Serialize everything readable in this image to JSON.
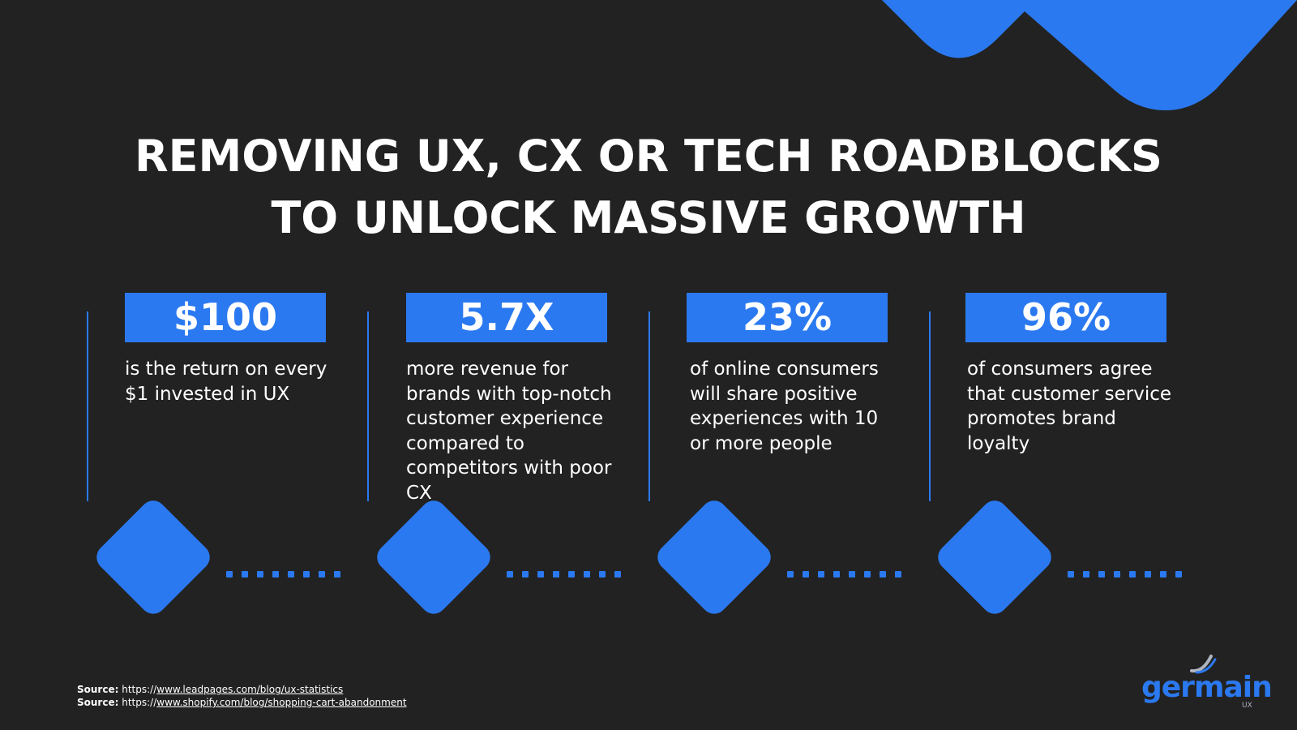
{
  "title": {
    "line1": "REMOVING UX, CX OR TECH ROADBLOCKS",
    "line2": "TO UNLOCK MASSIVE GROWTH"
  },
  "stats": [
    {
      "value": "$100",
      "description": "is the return on every $1 invested in UX"
    },
    {
      "value": "5.7X",
      "description": "more revenue for brands with top-notch customer experience compared to competitors with poor CX"
    },
    {
      "value": "23%",
      "description": "of online consumers will share positive experiences with 10 or more people"
    },
    {
      "value": "96%",
      "description": "of consumers agree that customer service promotes brand loyalty"
    }
  ],
  "sources": [
    {
      "label": "Source:",
      "prefix": "https://",
      "url": "www.leadpages.com/blog/ux-statistics"
    },
    {
      "label": "Source:",
      "prefix": "https://",
      "url": "www.shopify.com/blog/shopping-cart-abandonment"
    }
  ],
  "logo": {
    "word": "germain",
    "sub": "UX"
  },
  "colors": {
    "background": "#222222",
    "accent": "#2b79f0",
    "text": "#ffffff"
  }
}
